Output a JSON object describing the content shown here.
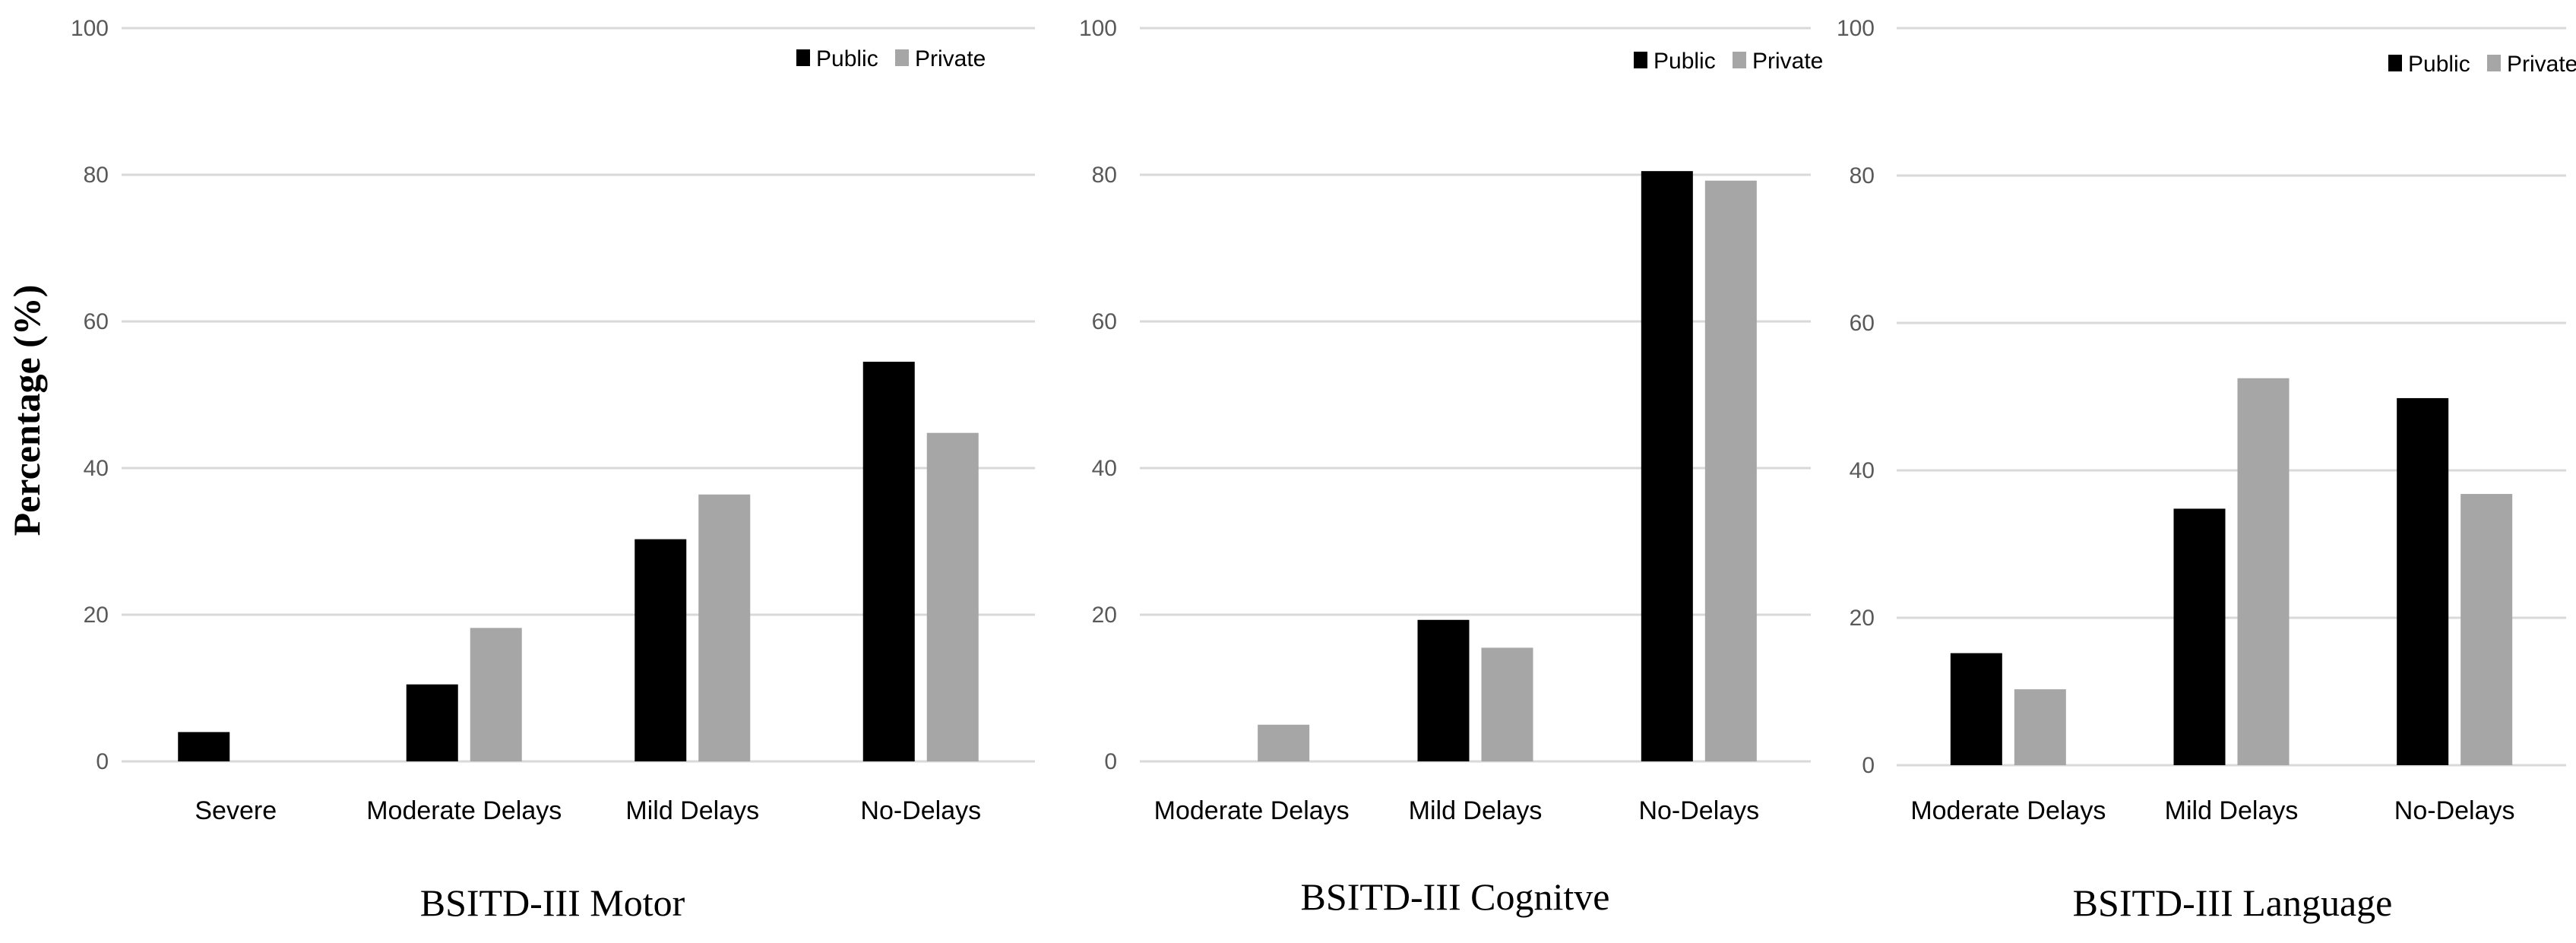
{
  "ylabel": "Percentage (%)",
  "legend": {
    "public_label": "Public",
    "private_label": "Private",
    "public_color": "#000000",
    "private_color": "#a6a6a6"
  },
  "chart_data": [
    {
      "type": "bar",
      "title": "BSITD-III Motor",
      "categories": [
        "Severe",
        "Moderate Delays",
        "Mild Delays",
        "No-Delays"
      ],
      "series": [
        {
          "name": "Public",
          "values": [
            4,
            10.5,
            30.3,
            54.5
          ]
        },
        {
          "name": "Private",
          "values": [
            0,
            18.2,
            36.4,
            44.8
          ]
        }
      ],
      "ylim": [
        0,
        100
      ],
      "yticks": [
        "0",
        "20",
        "40",
        "60",
        "80",
        "100"
      ],
      "grid": true,
      "legend_position": "top-right"
    },
    {
      "type": "bar",
      "title": "BSITD-III Cognitve",
      "categories": [
        "Moderate Delays",
        "Mild Delays",
        "No-Delays"
      ],
      "series": [
        {
          "name": "Public",
          "values": [
            0,
            19.3,
            80.5
          ]
        },
        {
          "name": "Private",
          "values": [
            5,
            15.5,
            79.2
          ]
        }
      ],
      "ylim": [
        0,
        100
      ],
      "yticks": [
        "0",
        "20",
        "40",
        "60",
        "80",
        "100"
      ],
      "grid": true,
      "legend_position": "top-right"
    },
    {
      "type": "bar",
      "title": "BSITD-III Language",
      "categories": [
        "Moderate Delays",
        "Mild Delays",
        "No-Delays"
      ],
      "series": [
        {
          "name": "Public",
          "values": [
            15.2,
            34.8,
            49.8
          ]
        },
        {
          "name": "Private",
          "values": [
            10.3,
            52.5,
            36.8
          ]
        }
      ],
      "ylim": [
        0,
        100
      ],
      "yticks": [
        "0",
        "20",
        "40",
        "60",
        "80",
        "100"
      ],
      "grid": true,
      "legend_position": "top-right"
    }
  ]
}
